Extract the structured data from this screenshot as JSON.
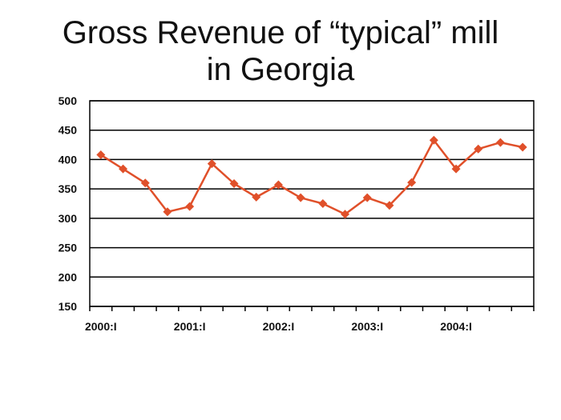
{
  "chart_data": {
    "type": "line",
    "title_lines": [
      "Gross Revenue of “typical” mill",
      "in Georgia"
    ],
    "xlabel": "",
    "ylabel": "",
    "x_tick_labels": [
      "2000:I",
      "2001:I",
      "2002:I",
      "2003:I",
      "2004:I"
    ],
    "x": [
      "2000:I",
      "2000:II",
      "2000:III",
      "2000:IV",
      "2001:I",
      "2001:II",
      "2001:III",
      "2001:IV",
      "2002:I",
      "2002:II",
      "2002:III",
      "2002:IV",
      "2003:I",
      "2003:II",
      "2003:III",
      "2003:IV",
      "2004:I",
      "2004:II",
      "2004:III",
      "2004:IV"
    ],
    "series": [
      {
        "values": [
          408,
          384,
          360,
          311,
          320,
          393,
          359,
          336,
          357,
          335,
          325,
          307,
          335,
          322,
          361,
          433,
          384,
          418,
          429,
          421
        ],
        "color": "#E0502A"
      }
    ],
    "ylim": [
      150,
      500
    ],
    "yticks": [
      150,
      200,
      250,
      300,
      350,
      400,
      450,
      500
    ],
    "grid": "horizontal",
    "legend": "none"
  }
}
